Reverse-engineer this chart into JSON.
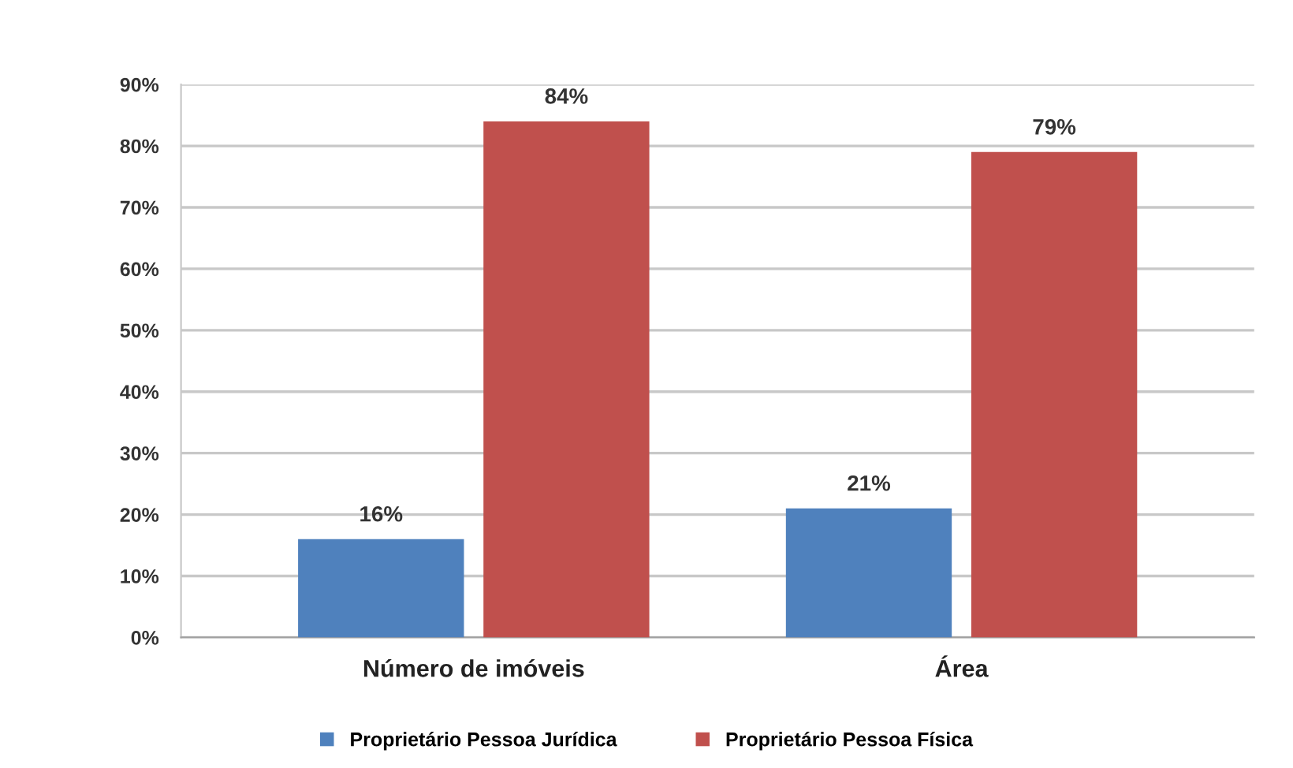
{
  "chart_data": {
    "type": "bar",
    "categories": [
      "Número de imóveis",
      "Área"
    ],
    "series": [
      {
        "name": "Proprietário Pessoa Jurídica",
        "color": "#4f81bd",
        "values": [
          16,
          21
        ],
        "value_labels": [
          "16%",
          "21%"
        ]
      },
      {
        "name": "Proprietário Pessoa Física",
        "color": "#c0504d",
        "values": [
          84,
          79
        ],
        "value_labels": [
          "84%",
          "79%"
        ]
      }
    ],
    "ylim": [
      0,
      90
    ],
    "yticks": [
      {
        "value": 0,
        "label": "0%"
      },
      {
        "value": 10,
        "label": "10%"
      },
      {
        "value": 20,
        "label": "20%"
      },
      {
        "value": 30,
        "label": "30%"
      },
      {
        "value": 40,
        "label": "40%"
      },
      {
        "value": 50,
        "label": "50%"
      },
      {
        "value": 60,
        "label": "60%"
      },
      {
        "value": 70,
        "label": "70%"
      },
      {
        "value": 80,
        "label": "80%"
      },
      {
        "value": 90,
        "label": "90%"
      }
    ],
    "grid": "y",
    "legend": "bottom"
  }
}
